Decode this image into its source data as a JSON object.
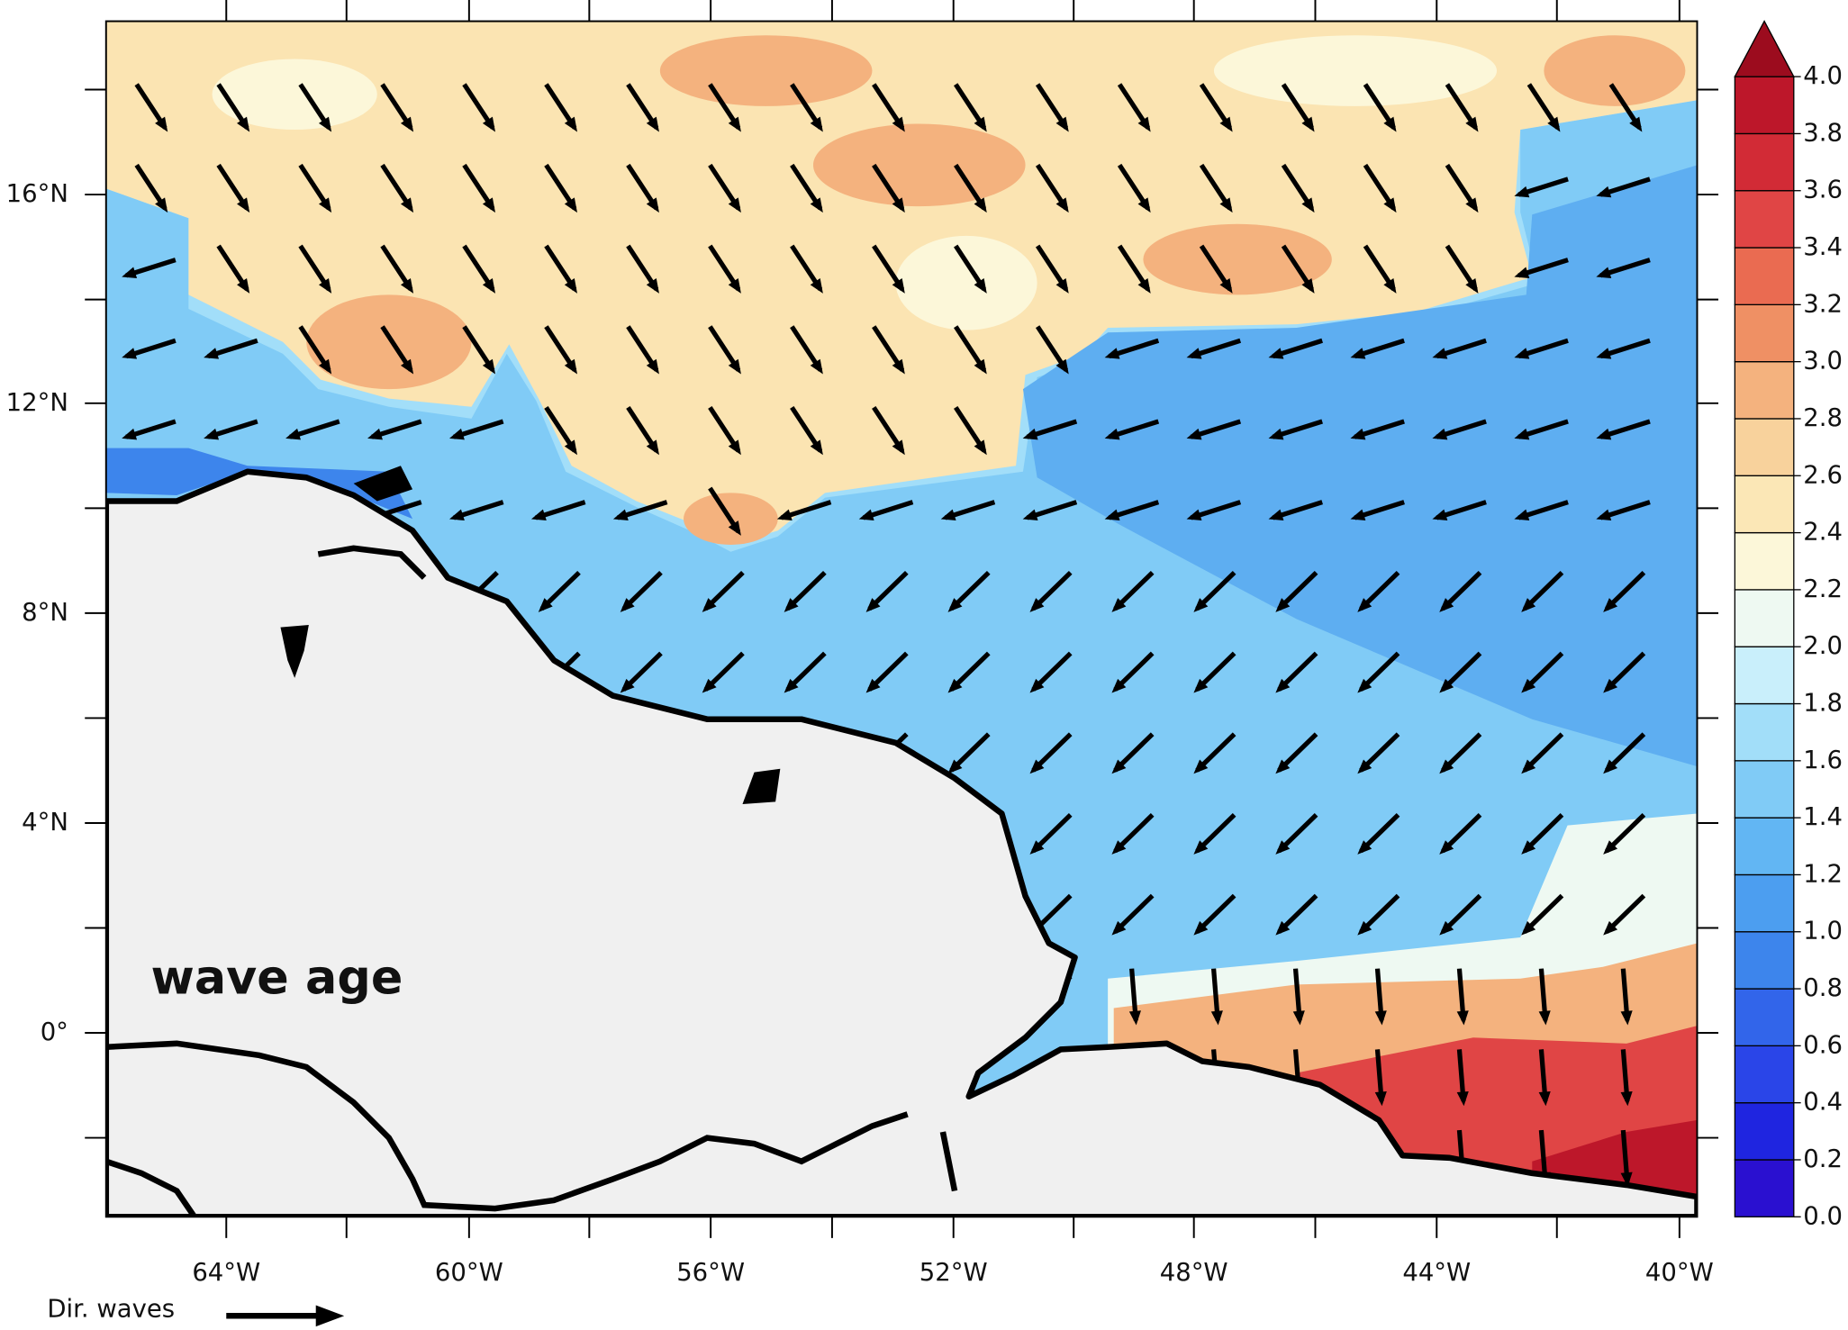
{
  "title": "wave age",
  "legend_label": "Dir. waves",
  "x_axis": {
    "labels": [
      "64°W",
      "60°W",
      "56°W",
      "52°W",
      "48°W",
      "44°W",
      "40°W"
    ]
  },
  "y_axis": {
    "labels": [
      "16°N",
      "12°N",
      "8°N",
      "4°N",
      "0°"
    ]
  },
  "colorbar": {
    "ticks": [
      {
        "value": 0,
        "label": "0.0"
      },
      {
        "value": 0.2,
        "label": "0.2"
      },
      {
        "value": 0.4,
        "label": "0.4"
      },
      {
        "value": 0.6,
        "label": "0.6"
      },
      {
        "value": 0.8,
        "label": "0.8"
      },
      {
        "value": 1,
        "label": "1.0"
      },
      {
        "value": 1.2,
        "label": "1.2"
      },
      {
        "value": 1.4,
        "label": "1.4"
      },
      {
        "value": 1.6,
        "label": "1.6"
      },
      {
        "value": 1.8,
        "label": "1.8"
      },
      {
        "value": 2,
        "label": "2.0"
      },
      {
        "value": 2.2,
        "label": "2.2"
      },
      {
        "value": 2.4,
        "label": "2.4"
      },
      {
        "value": 2.6,
        "label": "2.6"
      },
      {
        "value": 2.8,
        "label": "2.8"
      },
      {
        "value": 3,
        "label": "3.0"
      },
      {
        "value": 3.2,
        "label": "3.2"
      },
      {
        "value": 3.4,
        "label": "3.4"
      },
      {
        "value": 3.6,
        "label": "3.6"
      },
      {
        "value": 3.8,
        "label": "3.8"
      },
      {
        "value": 4,
        "label": "4.0"
      }
    ],
    "colors": [
      "#2a10d0",
      "#1f25e0",
      "#2a45e8",
      "#3265ea",
      "#3d85ec",
      "#4c9ef0",
      "#62b6f3",
      "#80cbf6",
      "#a2def9",
      "#c9effb",
      "#eef9f2",
      "#fcf7d9",
      "#fbe7b6",
      "#f8d29c",
      "#f4b27e",
      "#ef9064",
      "#ea6b51",
      "#e04545",
      "#d22b36",
      "#bd172a"
    ],
    "over_color": "#9c0c1e"
  }
}
